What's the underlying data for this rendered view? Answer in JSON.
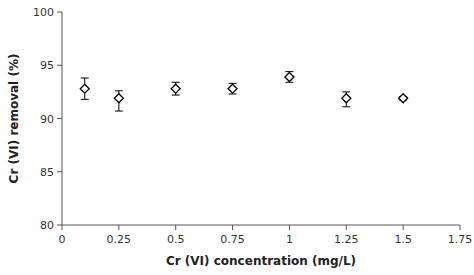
{
  "chart_data": {
    "type": "scatter",
    "xlabel": "Cr (VI) concentration (mg/L)",
    "ylabel": "Cr (VI) removal (%)",
    "x": [
      0.1,
      0.25,
      0.5,
      0.75,
      1.0,
      1.25,
      1.5
    ],
    "values": [
      92.8,
      91.9,
      92.8,
      92.8,
      93.9,
      91.9,
      91.9
    ],
    "yerr_upper": [
      1.0,
      0.7,
      0.6,
      0.5,
      0.5,
      0.6,
      0.15
    ],
    "yerr_lower": [
      1.0,
      1.2,
      0.6,
      0.5,
      0.5,
      0.8,
      0.15
    ],
    "xlim": [
      0,
      1.75
    ],
    "ylim": [
      80,
      100
    ],
    "xticks": [
      0,
      0.25,
      0.5,
      0.75,
      1,
      1.25,
      1.5,
      1.75
    ],
    "yticks": [
      80,
      85,
      90,
      95,
      100
    ],
    "marker": "diamond",
    "color": "black",
    "grid": false
  }
}
